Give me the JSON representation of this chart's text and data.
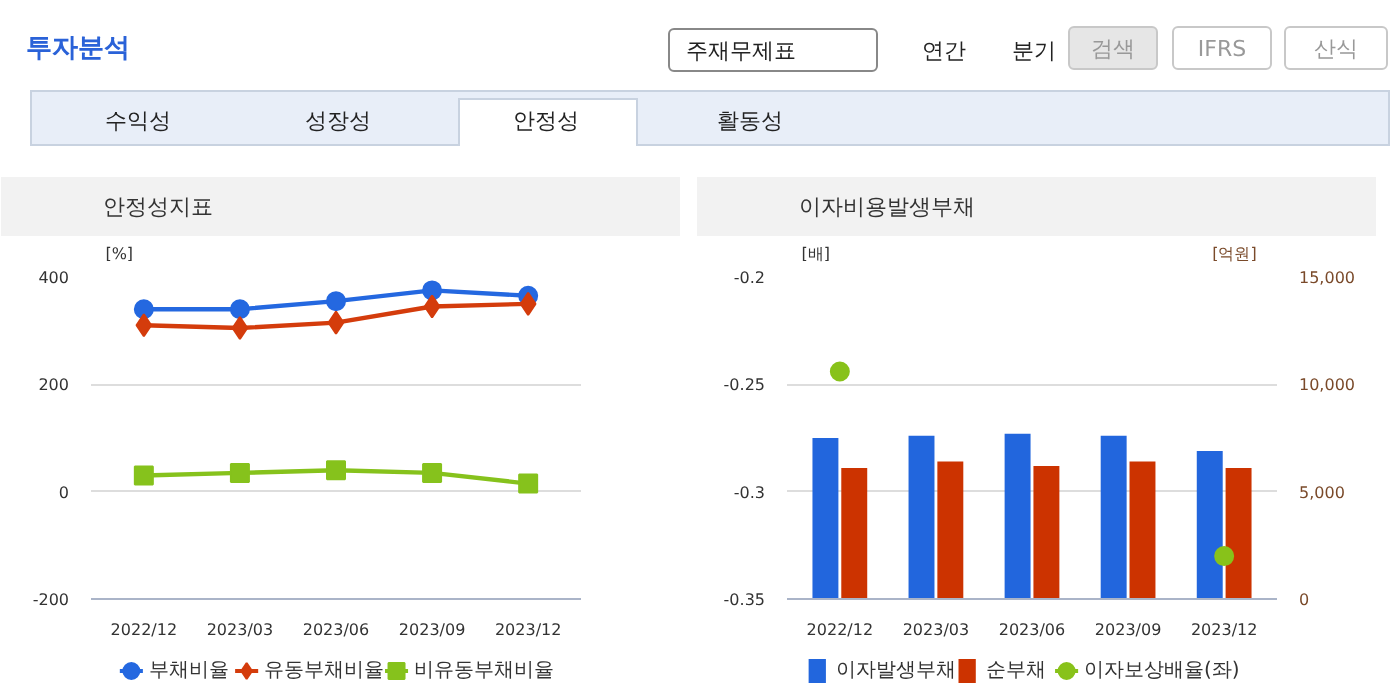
{
  "chart_data": [
    {
      "type": "line",
      "title": "안정성지표",
      "ylabel": "[%]",
      "categories": [
        "2022/12",
        "2023/03",
        "2023/06",
        "2023/09",
        "2023/12"
      ],
      "ylim": [
        -200,
        400
      ],
      "yticks": [
        {
          "value": -200,
          "label": "-200"
        },
        0,
        200,
        400
      ],
      "grid": "y",
      "legend": "bottom",
      "annotations": [
        "투자분석",
        "주재무제표",
        "연간",
        "분기",
        "검색",
        "IFRS",
        "산식",
        "수익성",
        "성장성",
        "안정성",
        "활동성"
      ],
      "series": [
        {
          "name": "부채비율",
          "color": "#2468e0",
          "marker": "circle",
          "values": [
            340,
            340,
            355,
            375,
            365
          ]
        },
        {
          "name": "유동부채비율",
          "color": "#d43c0c",
          "marker": "diamond",
          "values": [
            310,
            305,
            315,
            345,
            350
          ]
        },
        {
          "name": "비유동부채비율",
          "color": "#86c21c",
          "marker": "square",
          "values": [
            30,
            35,
            40,
            35,
            15
          ]
        }
      ]
    },
    {
      "type": "bar",
      "title": "이자비용발생부채",
      "ylabel": "[배]",
      "y2label": "[억원]",
      "categories": [
        "2022/12",
        "2023/03",
        "2023/06",
        "2023/09",
        "2023/12"
      ],
      "ylim": [
        -0.35,
        -0.2
      ],
      "yticks": [
        {
          "value": -0.35,
          "label": "-0.35"
        },
        {
          "value": -0.3,
          "label": "-0.3"
        },
        {
          "value": -0.25,
          "label": "-0.25"
        },
        {
          "value": -0.2,
          "label": "-0.2"
        }
      ],
      "y2lim": [
        0,
        15000
      ],
      "y2ticks": [
        0,
        {
          "value": 5000,
          "label": "5,000"
        },
        {
          "value": 10000,
          "label": "10,000"
        },
        {
          "value": 15000,
          "label": "15,000"
        }
      ],
      "grid": "y",
      "legend": "bottom",
      "series": [
        {
          "name": "이자발생부채",
          "type": "bar",
          "axis": "y2",
          "color": "#2266dd",
          "values": [
            7500,
            7600,
            7700,
            7600,
            6900
          ]
        },
        {
          "name": "순부채",
          "type": "bar",
          "axis": "y2",
          "color": "#cc3300",
          "values": [
            6100,
            6400,
            6200,
            6400,
            6100
          ]
        },
        {
          "name": "이자보상배율(좌)",
          "type": "scatter",
          "color": "#88c21a",
          "marker": "circle",
          "values": [
            -0.244,
            null,
            null,
            null,
            -0.33
          ]
        }
      ]
    }
  ]
}
